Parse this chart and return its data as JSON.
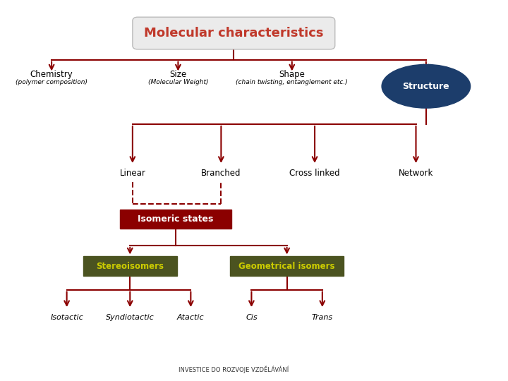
{
  "title": "Molecular characteristics",
  "title_color": "#C0392B",
  "title_bg": "#EBEBEB",
  "arrow_color": "#8B0000",
  "line_color": "#8B0000",
  "root_label": "Molecular characteristics",
  "bg_color": "#FFFFFF",
  "structure_ellipse_color": "#1C3D6B",
  "isomeric_box_color": "#8B0000",
  "olive_box_color": "#4B5320",
  "olive_text_color": "#CCCC00",
  "footer_text": "INVESTICE DO ROZVOJE VZDELAVANI"
}
